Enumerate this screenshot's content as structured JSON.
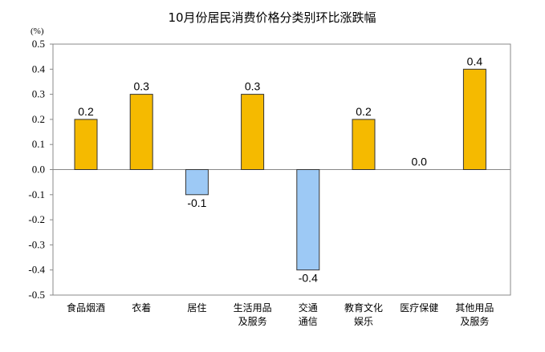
{
  "chart_data": {
    "type": "bar",
    "title": "10月份居民消费价格分类别环比涨跌幅",
    "ylabel": "(%)",
    "xlabel": "",
    "ylim": [
      -0.5,
      0.5
    ],
    "yticks": [
      "0.5",
      "0.4",
      "0.3",
      "0.2",
      "0.1",
      "0.0",
      "-0.1",
      "-0.2",
      "-0.3",
      "-0.4",
      "-0.5"
    ],
    "ytick_values": [
      0.5,
      0.4,
      0.3,
      0.2,
      0.1,
      0.0,
      -0.1,
      -0.2,
      -0.3,
      -0.4,
      -0.5
    ],
    "categories": [
      [
        "食品烟酒"
      ],
      [
        "衣着"
      ],
      [
        "居住"
      ],
      [
        "生活用品",
        "及服务"
      ],
      [
        "交通",
        "通信"
      ],
      [
        "教育文化",
        "娱乐"
      ],
      [
        "医疗保健"
      ],
      [
        "其他用品",
        "及服务"
      ]
    ],
    "values": [
      0.2,
      0.3,
      -0.1,
      0.3,
      -0.4,
      0.2,
      0.0,
      0.4
    ],
    "data_labels": [
      "0.2",
      "0.3",
      "-0.1",
      "0.3",
      "-0.4",
      "0.2",
      "0.0",
      "0.4"
    ],
    "grid": false,
    "colors": {
      "positive": "#F5BA00",
      "negative": "#9DC9F5",
      "edge": "#333333"
    }
  }
}
